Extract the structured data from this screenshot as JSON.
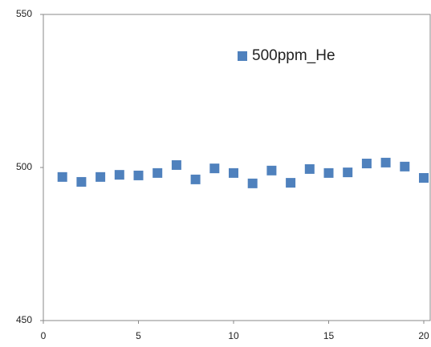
{
  "chart_data": {
    "type": "scatter",
    "series": [
      {
        "name": "500ppm_He",
        "color": "#4f81bd",
        "x": [
          1,
          2,
          3,
          4,
          5,
          6,
          7,
          8,
          9,
          10,
          11,
          12,
          13,
          14,
          15,
          16,
          17,
          18,
          19,
          20
        ],
        "values": [
          496.9,
          495.3,
          496.9,
          497.6,
          497.4,
          498.2,
          500.8,
          496.1,
          499.7,
          498.2,
          494.8,
          499.0,
          495.0,
          499.5,
          498.2,
          498.4,
          501.3,
          501.6,
          500.3,
          496.6
        ]
      }
    ],
    "xlim": [
      0,
      20
    ],
    "xticks": [
      0,
      5,
      10,
      15,
      20
    ],
    "ylim": [
      450,
      550
    ],
    "yticks": [
      450,
      500,
      550
    ],
    "legend": "top-right"
  }
}
